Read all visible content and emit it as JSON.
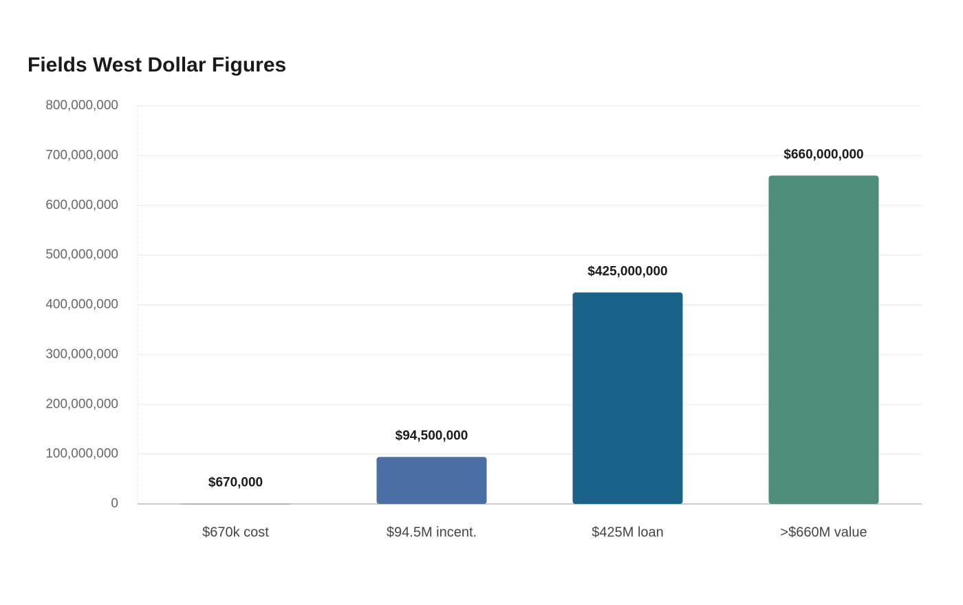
{
  "chart_data": {
    "type": "bar",
    "title": "Fields West Dollar Figures",
    "categories": [
      "$670k cost",
      "$94.5M incent.",
      "$425M loan",
      ">$660M value"
    ],
    "values": [
      670000,
      94500000,
      425000000,
      660000000
    ],
    "value_labels": [
      "$670,000",
      "$94,500,000",
      "$425,000,000",
      "$660,000,000"
    ],
    "colors": [
      "#a6a6a6",
      "#4a6fa5",
      "#1a6388",
      "#4e8d7a"
    ],
    "ylim": [
      0,
      800000000
    ],
    "yticks": [
      0,
      {
        "value": 100000000,
        "label": "100,000,000"
      },
      {
        "value": 200000000,
        "label": "200,000,000"
      },
      {
        "value": 300000000,
        "label": "300,000,000"
      },
      {
        "value": 400000000,
        "label": "400,000,000"
      },
      {
        "value": 500000000,
        "label": "500,000,000"
      },
      {
        "value": 600000000,
        "label": "600,000,000"
      },
      {
        "value": 700000000,
        "label": "700,000,000"
      },
      {
        "value": 800000000,
        "label": "800,000,000"
      }
    ],
    "grid": true
  }
}
